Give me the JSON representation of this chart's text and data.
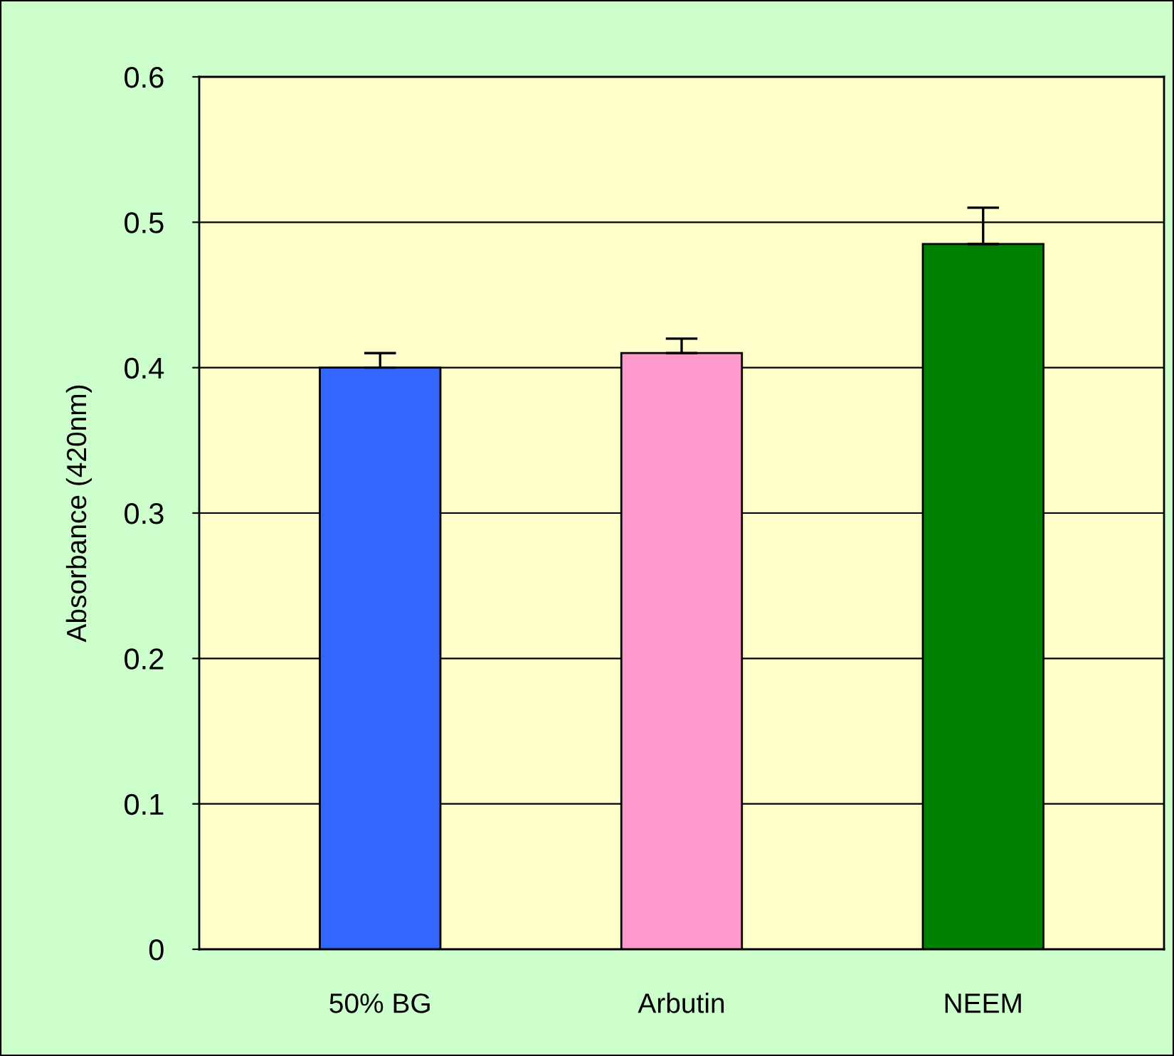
{
  "chart_data": {
    "type": "bar",
    "ylabel": "Absorbance (420nm)",
    "categories": [
      "50% BG",
      "Arbutin",
      "NEEM"
    ],
    "values": [
      0.4,
      0.41,
      0.485
    ],
    "errors": [
      0.01,
      0.01,
      0.025
    ],
    "colors": [
      "#3366ff",
      "#ff99cc",
      "#008000"
    ],
    "ylim": [
      0,
      0.6
    ],
    "yticks": [
      0,
      0.1,
      0.2,
      0.3,
      0.4,
      0.5,
      0.6
    ],
    "grid": "y"
  }
}
